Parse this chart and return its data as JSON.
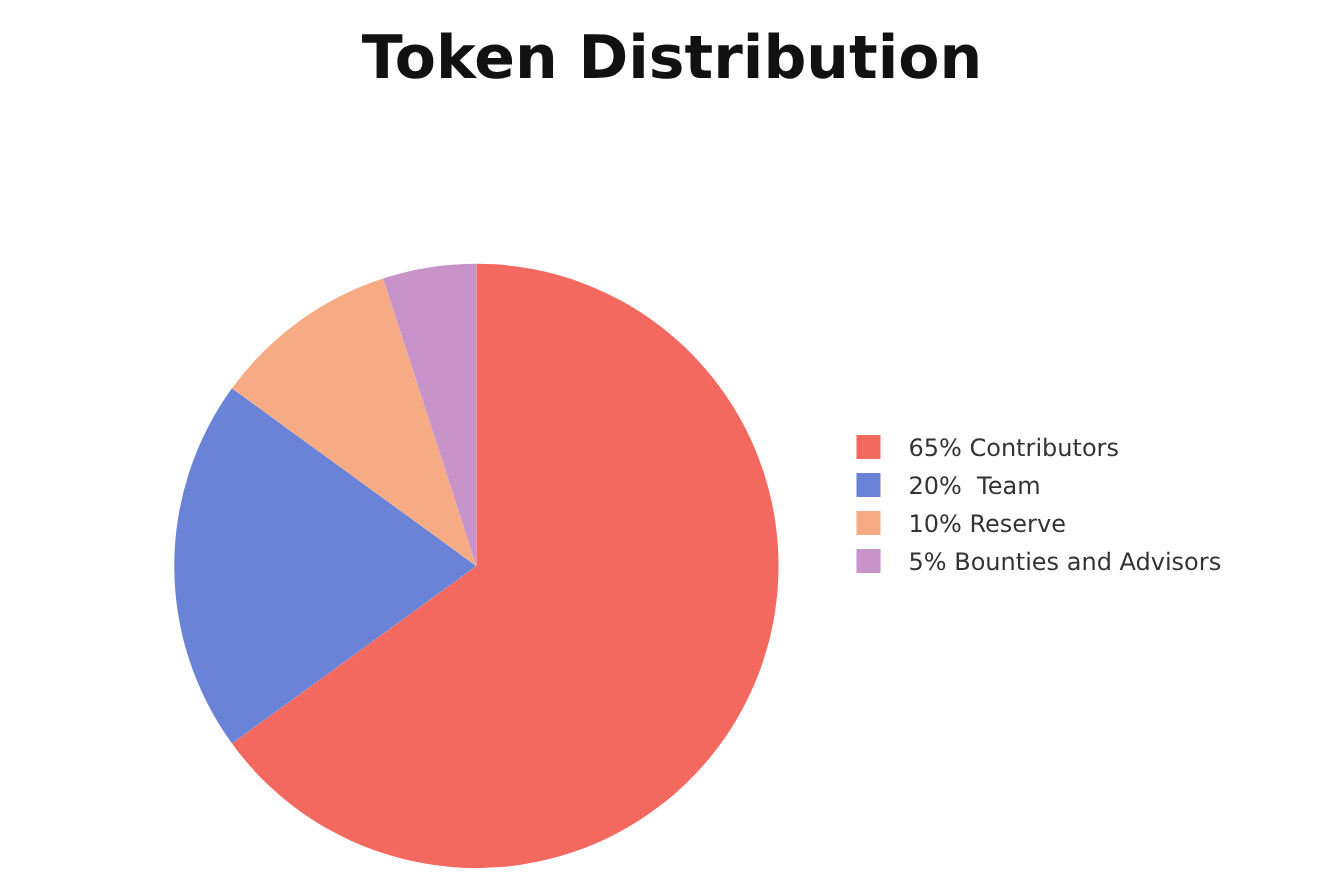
{
  "chart_data": {
    "type": "pie",
    "title": "Token Distribution",
    "categories": [
      "65% Contributors",
      "20%  Team",
      "10% Reserve",
      "5% Bounties and Advisors"
    ],
    "values": [
      65,
      20,
      10,
      5
    ],
    "colors": [
      "#f4695f",
      "#6a83d6",
      "#f6ab84",
      "#c793c9"
    ],
    "legend": "right"
  }
}
